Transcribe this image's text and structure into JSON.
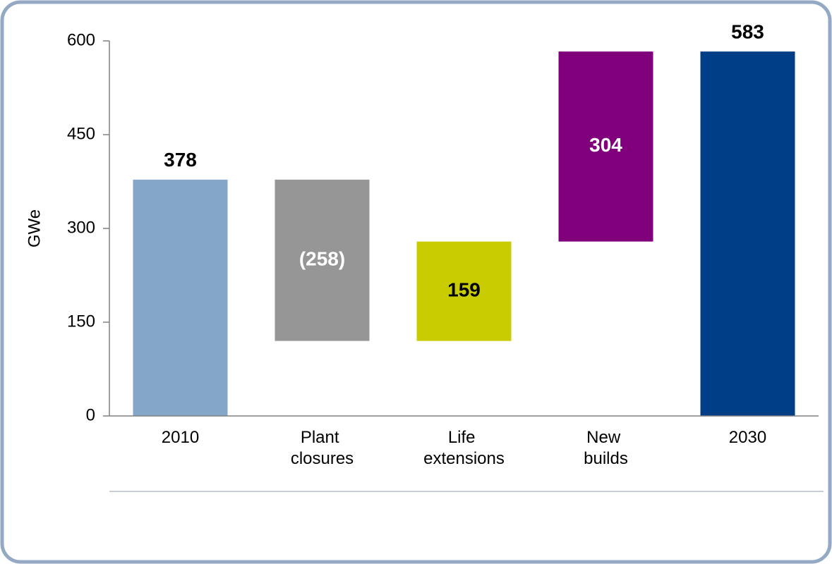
{
  "chart_data": {
    "type": "waterfall",
    "categories": [
      "2010",
      "Plant closures",
      "Life extensions",
      "New builds",
      "2030"
    ],
    "values": [
      378,
      -258,
      159,
      304,
      583
    ],
    "value_labels": [
      "378",
      "(258)",
      "159",
      "304",
      "583"
    ],
    "colors": [
      "#84a6c8",
      "#969696",
      "#c8cc00",
      "#80007c",
      "#003f87"
    ],
    "label_colors": [
      "#000000",
      "#ffffff",
      "#000000",
      "#ffffff",
      "#000000"
    ],
    "y_label": "GWe",
    "ylim": [
      0,
      600
    ],
    "yticks": [
      0,
      150,
      300,
      450,
      600
    ]
  }
}
